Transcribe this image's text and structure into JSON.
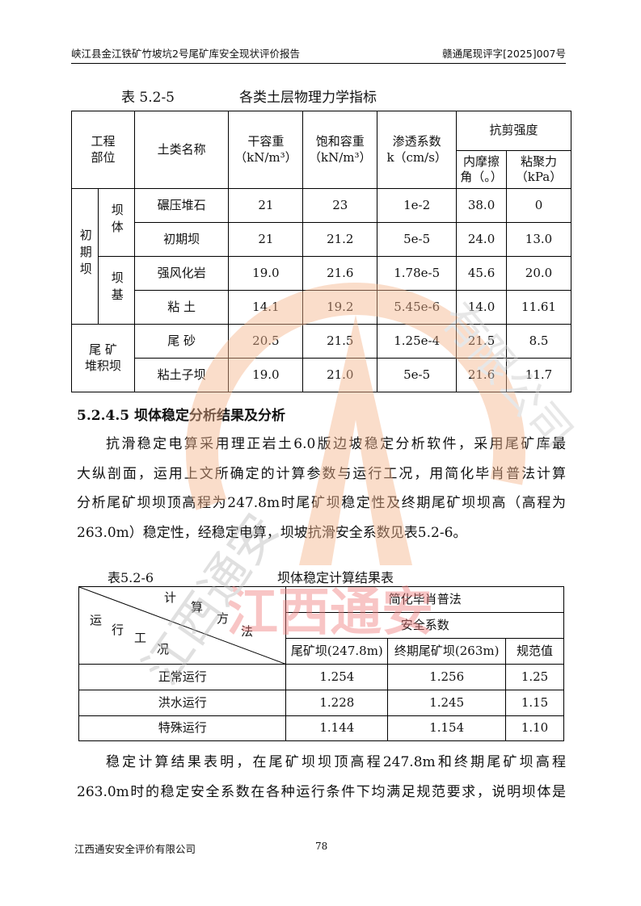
{
  "header": {
    "left": "峡江县金江铁矿竹坡坑2号尾矿库安全现状评价报告",
    "right": "赣通尾现评字[2025]007号"
  },
  "table1": {
    "caption_no": "表 5.2-5",
    "caption_title": "各类土层物理力学指标",
    "headers": {
      "part": "工程部位",
      "soil": "土类名称",
      "dry": "干容重",
      "dry_unit": "（kN/m³）",
      "sat": "饱和容重",
      "sat_unit": "（kN/m³）",
      "perm": "渗透系数",
      "perm_unit": "k（cm/s）",
      "shear": "抗剪强度",
      "phi": "内摩擦角（。）",
      "c": "粘聚力（kPa）"
    },
    "groups": {
      "initial": "初期坝",
      "body": "坝体",
      "base": "坝基",
      "tail": "尾 矿 堆积坝"
    },
    "rows": [
      [
        "碾压堆石",
        "21",
        "23",
        "1e-2",
        "38.0",
        "0"
      ],
      [
        "初期坝",
        "21",
        "21.2",
        "5e-5",
        "24.0",
        "13.0"
      ],
      [
        "强风化岩",
        "19.0",
        "21.6",
        "1.78e-5",
        "45.6",
        "20.0"
      ],
      [
        "粘 土",
        "14.1",
        "19.2",
        "5.45e-6",
        "14.0",
        "11.61"
      ],
      [
        "尾 砂",
        "20.5",
        "21.5",
        "1.25e-4",
        "21.5",
        "8.5"
      ],
      [
        "粘土子坝",
        "19.0",
        "21.0",
        "5e-5",
        "21.6",
        "11.7"
      ]
    ]
  },
  "section": "5.2.4.5 坝体稳定分析结果及分析",
  "para1": [
    "抗滑稳定电算采用理正岩土6.0版边坡稳定分析软件，采用尾矿库最",
    "大纵剖面，运用上文所确定的计算参数与运行工况，用简化毕肖普法计算",
    "分析尾矿坝坝顶高程为247.8m时尾矿坝稳定性及终期尾矿坝坝高（高程为",
    "263.0m）稳定性，经稳定电算，坝坡抗滑安全系数见表5.2-6。"
  ],
  "table2": {
    "caption_no": "表5.2-6",
    "caption_title": "坝体稳定计算结果表",
    "diag": {
      "top": [
        "计",
        "算",
        "方",
        "法"
      ],
      "bottom": [
        "运",
        "行",
        "工",
        "况"
      ]
    },
    "method": "简化毕肖普法",
    "factor": "安全系数",
    "cols": [
      "尾矿坝(247.8m)",
      "终期尾矿坝(263m)",
      "规范值"
    ],
    "rows": [
      [
        "正常运行",
        "1.254",
        "1.256",
        "1.25"
      ],
      [
        "洪水运行",
        "1.228",
        "1.245",
        "1.15"
      ],
      [
        "特殊运行",
        "1.144",
        "1.154",
        "1.10"
      ]
    ]
  },
  "para2": [
    "稳定计算结果表明，在尾矿坝坝顶高程247.8m和终期尾矿坝高程",
    "263.0m时的稳定安全系数在各种运行条件下均满足规范要求，说明坝体是"
  ],
  "footer": {
    "company": "江西通安安全评价有限公司",
    "page": "78"
  },
  "watermark": {
    "text": "江西通安",
    "ring_text": "江西通安安全评价有限公司",
    "colors": {
      "arc": "#f6b48c",
      "text": "#f08080",
      "gray": "#cfcfcf"
    }
  }
}
